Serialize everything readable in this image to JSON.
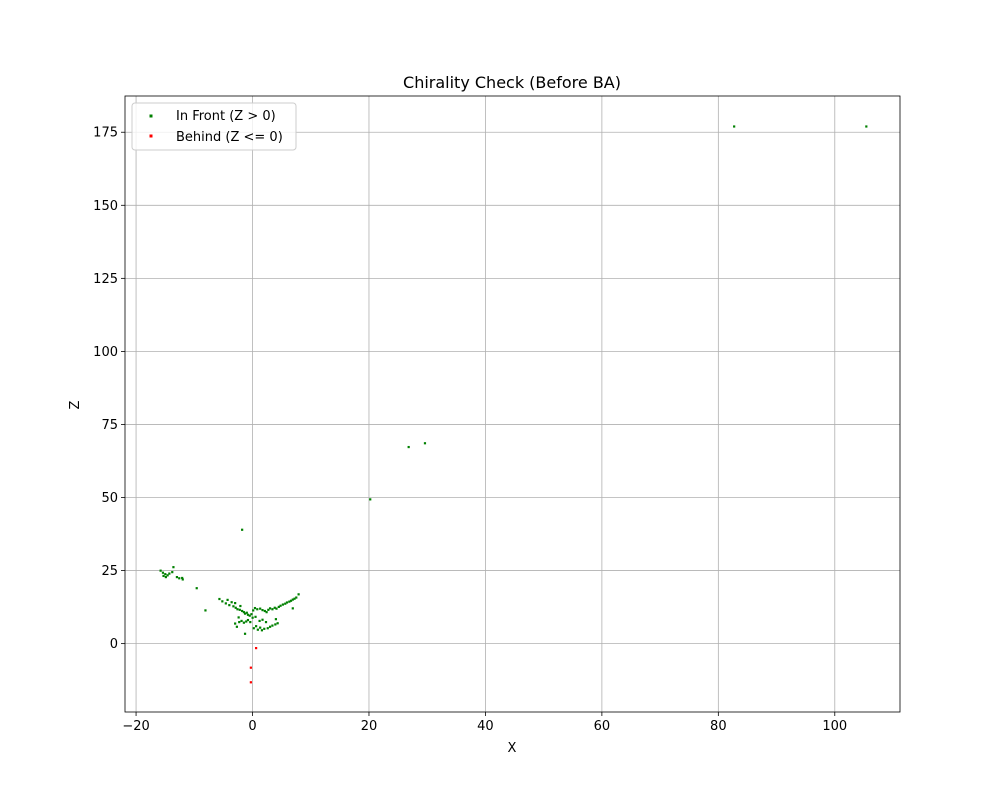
{
  "chart_data": {
    "type": "scatter",
    "title": "Chirality Check (Before BA)",
    "xlabel": "X",
    "ylabel": "Z",
    "xlim": [
      -21.9,
      111.2
    ],
    "ylim": [
      -23.4,
      187.4
    ],
    "xticks": [
      -20,
      0,
      20,
      40,
      60,
      80,
      100
    ],
    "yticks": [
      0,
      25,
      50,
      75,
      100,
      125,
      150,
      175
    ],
    "grid": true,
    "legend_position": "top-left",
    "series": [
      {
        "name": "In Front (Z > 0)",
        "color": "#008000",
        "points": [
          [
            82.7,
            177.0
          ],
          [
            105.4,
            177.0
          ],
          [
            29.6,
            68.6
          ],
          [
            26.8,
            67.3
          ],
          [
            20.2,
            49.4
          ],
          [
            -1.8,
            39.0
          ],
          [
            -15.8,
            25.0
          ],
          [
            -15.4,
            24.3
          ],
          [
            -15.0,
            23.8
          ],
          [
            -15.3,
            23.2
          ],
          [
            -14.9,
            22.8
          ],
          [
            -14.6,
            23.4
          ],
          [
            -14.3,
            24.0
          ],
          [
            -13.8,
            24.5
          ],
          [
            -13.6,
            26.2
          ],
          [
            -13.0,
            22.8
          ],
          [
            -12.6,
            22.4
          ],
          [
            -12.1,
            22.5
          ],
          [
            -12.0,
            22.0
          ],
          [
            -9.6,
            19.0
          ],
          [
            -8.1,
            11.4
          ],
          [
            -5.7,
            15.3
          ],
          [
            -5.2,
            14.5
          ],
          [
            -4.6,
            13.8
          ],
          [
            -4.3,
            15.0
          ],
          [
            -4.0,
            13.2
          ],
          [
            -3.6,
            14.2
          ],
          [
            -3.3,
            12.8
          ],
          [
            -3.0,
            13.9
          ],
          [
            -2.9,
            12.3
          ],
          [
            -2.6,
            11.8
          ],
          [
            -2.2,
            11.6
          ],
          [
            -2.1,
            12.9
          ],
          [
            -1.8,
            11.2
          ],
          [
            -1.5,
            10.8
          ],
          [
            -1.3,
            10.3
          ],
          [
            -1.0,
            10.6
          ],
          [
            -0.8,
            9.9
          ],
          [
            -0.5,
            9.6
          ],
          [
            -0.2,
            10.1
          ],
          [
            0.1,
            11.4
          ],
          [
            0.4,
            12.2
          ],
          [
            0.8,
            11.8
          ],
          [
            1.3,
            12.0
          ],
          [
            1.7,
            11.5
          ],
          [
            2.1,
            11.2
          ],
          [
            2.4,
            10.8
          ],
          [
            2.7,
            11.6
          ],
          [
            3.0,
            12.1
          ],
          [
            3.4,
            11.8
          ],
          [
            3.8,
            12.3
          ],
          [
            4.1,
            12.0
          ],
          [
            4.5,
            12.6
          ],
          [
            4.8,
            13.0
          ],
          [
            5.2,
            13.4
          ],
          [
            5.6,
            13.7
          ],
          [
            5.9,
            14.1
          ],
          [
            6.3,
            14.4
          ],
          [
            6.6,
            14.7
          ],
          [
            6.9,
            15.1
          ],
          [
            7.2,
            15.4
          ],
          [
            7.5,
            15.8
          ],
          [
            7.9,
            16.9
          ],
          [
            -3.0,
            6.9
          ],
          [
            -2.7,
            5.8
          ],
          [
            -2.3,
            7.4
          ],
          [
            -1.9,
            7.8
          ],
          [
            -1.5,
            7.2
          ],
          [
            -1.1,
            7.6
          ],
          [
            -0.8,
            8.1
          ],
          [
            -0.4,
            7.4
          ],
          [
            0.2,
            5.3
          ],
          [
            0.6,
            6.0
          ],
          [
            0.9,
            4.8
          ],
          [
            1.3,
            5.5
          ],
          [
            1.6,
            4.6
          ],
          [
            2.0,
            5.1
          ],
          [
            2.3,
            7.4
          ],
          [
            2.6,
            5.3
          ],
          [
            3.0,
            5.8
          ],
          [
            3.4,
            6.2
          ],
          [
            3.9,
            6.6
          ],
          [
            4.3,
            7.0
          ],
          [
            1.2,
            7.8
          ],
          [
            1.7,
            8.2
          ],
          [
            4.0,
            8.4
          ],
          [
            6.9,
            12.1
          ],
          [
            -1.3,
            3.4
          ],
          [
            0.0,
            8.9
          ],
          [
            0.5,
            9.2
          ],
          [
            -2.4,
            9.0
          ]
        ]
      },
      {
        "name": "Behind (Z <= 0)",
        "color": "#ff0000",
        "points": [
          [
            0.6,
            -1.5
          ],
          [
            -0.3,
            -8.2
          ],
          [
            -0.3,
            -13.2
          ]
        ]
      }
    ]
  }
}
